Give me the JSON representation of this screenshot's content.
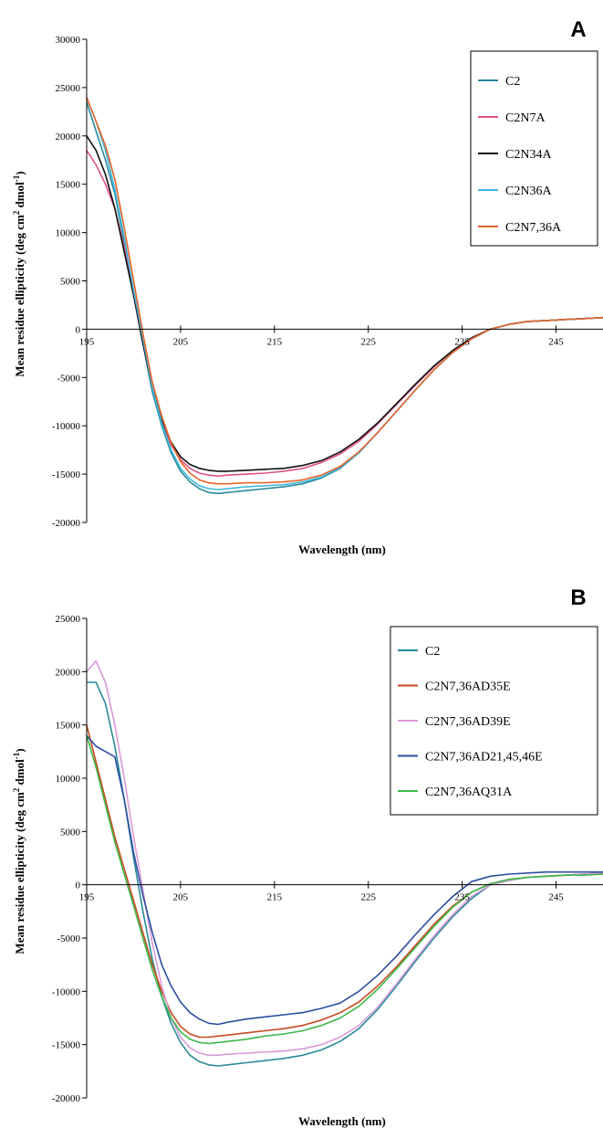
{
  "chart_data": [
    {
      "type": "line",
      "panel": "A",
      "xlabel": "Wavelength (nm)",
      "ylabel": "Mean residue ellipticity (deg cm² dmol⁻¹)",
      "ylim": [
        -20000,
        30000
      ],
      "xlim": [
        195,
        250
      ],
      "xticks": [
        "195",
        "205",
        "215",
        "225",
        "235",
        "245"
      ],
      "yticks": [
        "30000",
        "25000",
        "20000",
        "15000",
        "10000",
        "5000",
        "0",
        "-5000",
        "-10000",
        "-15000",
        "-20000"
      ],
      "legend_position": "top-right",
      "x": [
        195,
        196,
        197,
        198,
        199,
        200,
        201,
        202,
        203,
        204,
        205,
        206,
        207,
        208,
        209,
        210,
        212,
        214,
        216,
        218,
        220,
        222,
        224,
        226,
        228,
        230,
        232,
        234,
        236,
        238,
        240,
        242,
        244,
        246,
        248,
        250
      ],
      "series": [
        {
          "name": "C2",
          "color": "#2a8a9a",
          "values": [
            23500,
            20500,
            17500,
            14000,
            9000,
            3500,
            -1500,
            -6500,
            -10000,
            -12800,
            -14700,
            -15800,
            -16500,
            -16900,
            -17000,
            -16900,
            -16700,
            -16500,
            -16300,
            -16000,
            -15400,
            -14400,
            -12800,
            -10700,
            -8500,
            -6300,
            -4200,
            -2400,
            -1000,
            0,
            500,
            800,
            900,
            1000,
            1100,
            1200
          ]
        },
        {
          "name": "C2N7A",
          "color": "#e0508a",
          "values": [
            18500,
            17000,
            15000,
            12500,
            8500,
            3500,
            -1500,
            -6000,
            -9500,
            -12000,
            -13500,
            -14400,
            -14900,
            -15100,
            -15200,
            -15100,
            -15000,
            -14900,
            -14700,
            -14400,
            -13800,
            -12900,
            -11600,
            -9800,
            -7800,
            -5800,
            -3900,
            -2200,
            -900,
            0,
            500,
            800,
            900,
            1000,
            1100,
            1200
          ]
        },
        {
          "name": "C2N34A",
          "color": "#111111",
          "values": [
            20000,
            18500,
            16000,
            12500,
            8000,
            3500,
            -1500,
            -6000,
            -9300,
            -11700,
            -13200,
            -14000,
            -14400,
            -14600,
            -14700,
            -14700,
            -14600,
            -14500,
            -14400,
            -14100,
            -13600,
            -12700,
            -11400,
            -9700,
            -7700,
            -5700,
            -3800,
            -2200,
            -900,
            0,
            500,
            800,
            900,
            1000,
            1100,
            1200
          ]
        },
        {
          "name": "C2N36A",
          "color": "#40b8e0",
          "values": [
            24000,
            21500,
            18500,
            14500,
            9500,
            4000,
            -1000,
            -6000,
            -9700,
            -12500,
            -14400,
            -15500,
            -16200,
            -16500,
            -16600,
            -16500,
            -16300,
            -16200,
            -16100,
            -15800,
            -15300,
            -14300,
            -12800,
            -10700,
            -8500,
            -6300,
            -4200,
            -2400,
            -1000,
            0,
            500,
            800,
            900,
            1000,
            1100,
            1200
          ]
        },
        {
          "name": "C2N7,36A",
          "color": "#e8642a",
          "values": [
            24000,
            21500,
            19000,
            15500,
            10500,
            5000,
            -500,
            -5500,
            -9000,
            -11800,
            -13700,
            -14900,
            -15600,
            -15900,
            -16000,
            -16000,
            -15900,
            -15900,
            -15800,
            -15600,
            -15100,
            -14200,
            -12700,
            -10700,
            -8500,
            -6300,
            -4200,
            -2400,
            -1000,
            0,
            500,
            800,
            900,
            1000,
            1100,
            1200
          ]
        }
      ]
    },
    {
      "type": "line",
      "panel": "B",
      "xlabel": "Wavelength (nm)",
      "ylabel": "Mean residue ellipticity (deg cm² dmol⁻¹)",
      "ylim": [
        -20000,
        25000
      ],
      "xlim": [
        195,
        250
      ],
      "xticks": [
        "195",
        "205",
        "215",
        "225",
        "235",
        "245"
      ],
      "yticks": [
        "25000",
        "20000",
        "15000",
        "10000",
        "5000",
        "0",
        "-5000",
        "-10000",
        "-15000",
        "-20000"
      ],
      "legend_position": "top-right",
      "x": [
        195,
        196,
        197,
        198,
        199,
        200,
        201,
        202,
        203,
        204,
        205,
        206,
        207,
        208,
        209,
        210,
        212,
        214,
        216,
        218,
        220,
        222,
        224,
        226,
        228,
        230,
        232,
        234,
        236,
        238,
        240,
        242,
        244,
        246,
        248,
        250
      ],
      "series": [
        {
          "name": "C2",
          "color": "#2a8a9a",
          "values": [
            19000,
            19000,
            17000,
            13000,
            8000,
            2500,
            -2500,
            -7000,
            -10500,
            -13000,
            -14800,
            -16000,
            -16600,
            -16900,
            -17000,
            -16900,
            -16700,
            -16500,
            -16300,
            -16000,
            -15500,
            -14700,
            -13500,
            -11700,
            -9500,
            -7200,
            -5000,
            -3000,
            -1300,
            0,
            400,
            700,
            800,
            900,
            1000,
            1100
          ]
        },
        {
          "name": "C2N7,36AD35E",
          "color": "#c84a20",
          "values": [
            15000,
            11500,
            8000,
            4500,
            1500,
            -1500,
            -4500,
            -7500,
            -10000,
            -12000,
            -13300,
            -14000,
            -14300,
            -14300,
            -14200,
            -14100,
            -13900,
            -13700,
            -13500,
            -13200,
            -12700,
            -12000,
            -11000,
            -9500,
            -7700,
            -5700,
            -3700,
            -2000,
            -700,
            100,
            500,
            700,
            800,
            900,
            1000,
            1000
          ]
        },
        {
          "name": "C2N7,36AD39E",
          "color": "#d89ad8",
          "values": [
            20000,
            21000,
            19000,
            15000,
            10000,
            4500,
            -500,
            -5500,
            -9500,
            -12500,
            -14300,
            -15300,
            -15800,
            -16000,
            -16000,
            -15900,
            -15800,
            -15700,
            -15600,
            -15400,
            -15000,
            -14300,
            -13200,
            -11500,
            -9300,
            -7000,
            -4800,
            -2800,
            -1100,
            0,
            400,
            700,
            800,
            900,
            1000,
            1100
          ]
        },
        {
          "name": "C2N7,36AD21,45,46E",
          "color": "#2a4fa0",
          "values": [
            14000,
            13000,
            12500,
            12000,
            8000,
            3000,
            -1000,
            -4500,
            -7500,
            -9500,
            -11000,
            -12000,
            -12600,
            -13000,
            -13100,
            -12900,
            -12600,
            -12400,
            -12200,
            -12000,
            -11600,
            -11100,
            -10000,
            -8500,
            -6700,
            -4700,
            -2800,
            -1100,
            300,
            800,
            1000,
            1100,
            1200,
            1200,
            1200,
            1200
          ]
        },
        {
          "name": "C2N7,36AQ31A",
          "color": "#3cb84a",
          "values": [
            14000,
            11000,
            7500,
            4000,
            1000,
            -2000,
            -5000,
            -8000,
            -10500,
            -12500,
            -13800,
            -14500,
            -14800,
            -14900,
            -14800,
            -14700,
            -14500,
            -14200,
            -14000,
            -13700,
            -13200,
            -12500,
            -11400,
            -9800,
            -7900,
            -5900,
            -3900,
            -2100,
            -700,
            100,
            500,
            700,
            800,
            900,
            900,
            1000
          ]
        }
      ]
    }
  ]
}
